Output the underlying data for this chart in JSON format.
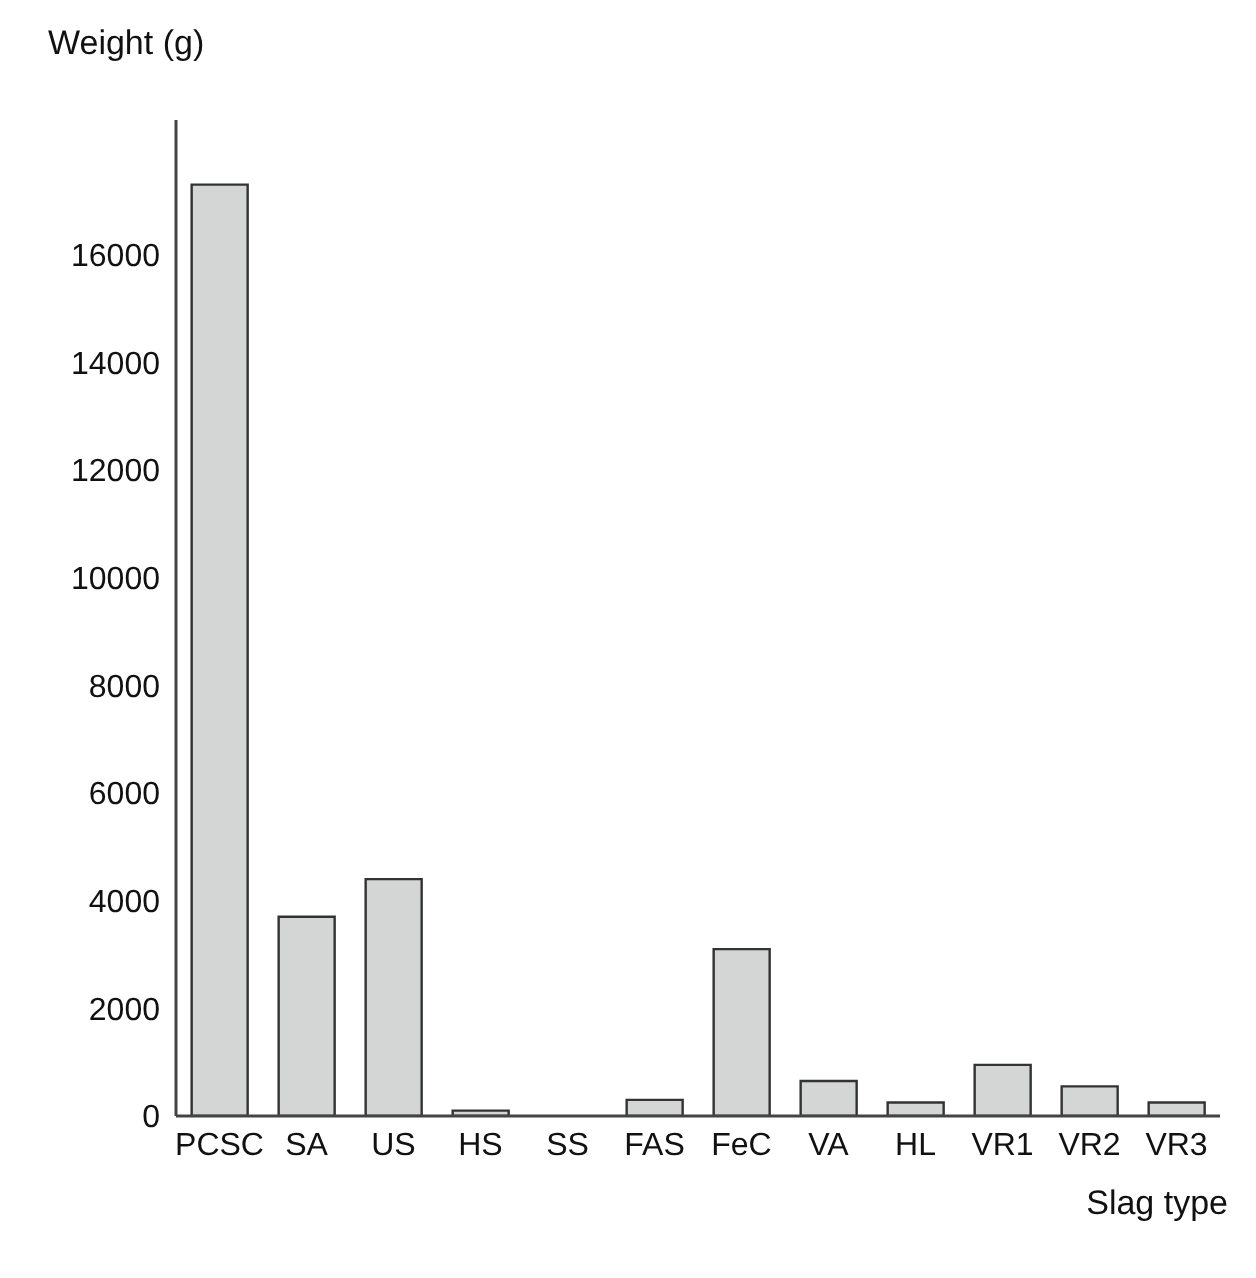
{
  "chart_data": {
    "type": "bar",
    "xlabel": "Slag type",
    "ylabel": "Weight (g)",
    "categories": [
      "PCSC",
      "SA",
      "US",
      "HS",
      "SS",
      "FAS",
      "FeC",
      "VA",
      "HL",
      "VR1",
      "VR2",
      "VR3"
    ],
    "values": [
      17300,
      3700,
      4400,
      100,
      0,
      300,
      3100,
      650,
      250,
      950,
      550,
      250
    ],
    "color": "#d4d5d5",
    "ylim": [
      0,
      18500
    ],
    "yticks": [
      0,
      2000,
      4000,
      6000,
      8000,
      10000,
      12000,
      14000,
      16000
    ],
    "grid": false
  }
}
